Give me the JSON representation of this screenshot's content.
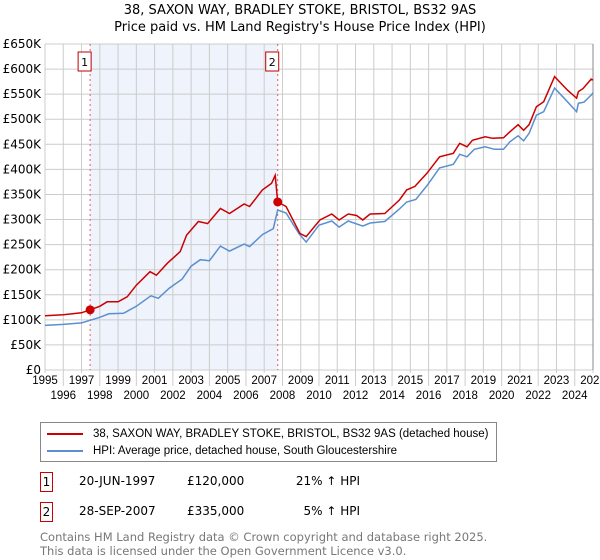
{
  "title_line1": "38, SAXON WAY, BRADLEY STOKE, BRISTOL, BS32 9AS",
  "title_line2": "Price paid vs. HM Land Registry's House Price Index (HPI)",
  "chart_data": {
    "type": "line",
    "title": "38, SAXON WAY, BRADLEY STOKE, BRISTOL, BS32 9AS - Price paid vs. HM Land Registry's House Price Index (HPI)",
    "xlim": [
      1995,
      2025
    ],
    "ylim": [
      0,
      650000
    ],
    "yticks": [
      0,
      50000,
      100000,
      150000,
      200000,
      250000,
      300000,
      350000,
      400000,
      450000,
      500000,
      550000,
      600000,
      650000
    ],
    "ytick_labels": [
      "£0",
      "£50K",
      "£100K",
      "£150K",
      "£200K",
      "£250K",
      "£300K",
      "£350K",
      "£400K",
      "£450K",
      "£500K",
      "£550K",
      "£600K",
      "£650K"
    ],
    "xticks": [
      1995,
      1996,
      1997,
      1998,
      1999,
      2000,
      2001,
      2002,
      2003,
      2004,
      2005,
      2006,
      2007,
      2008,
      2009,
      2010,
      2011,
      2012,
      2013,
      2014,
      2015,
      2016,
      2017,
      2018,
      2019,
      2020,
      2021,
      2022,
      2023,
      2024,
      2025
    ],
    "grid": true,
    "shaded_range": [
      1997.47,
      2007.74
    ],
    "series": [
      {
        "name": "38, SAXON WAY, BRADLEY STOKE, BRISTOL, BS32 9AS (detached house)",
        "color": "#cc0000",
        "x": [
          1995,
          1996,
          1997,
          1997.47,
          1998,
          1998.4,
          1999,
          1999.5,
          2000,
          2000.75,
          2001.1,
          2001.7,
          2002.4,
          2002.75,
          2003.4,
          2003.9,
          2004.6,
          2005.1,
          2005.9,
          2006.2,
          2006.9,
          2007.4,
          2007.6,
          2007.74,
          2008.2,
          2008.96,
          2009.3,
          2010.05,
          2010.7,
          2011.1,
          2011.6,
          2012.06,
          2012.4,
          2012.8,
          2013.6,
          2014.4,
          2014.8,
          2015.25,
          2015.9,
          2016.6,
          2017.35,
          2017.7,
          2018.1,
          2018.4,
          2019.1,
          2019.5,
          2020.1,
          2020.45,
          2020.9,
          2021.2,
          2021.5,
          2021.9,
          2022.3,
          2022.9,
          2023.6,
          2024.1,
          2024.2,
          2024.45,
          2024.9,
          2025
        ],
        "y": [
          108000,
          110000,
          114000,
          120000,
          127000,
          136000,
          136000,
          146000,
          169000,
          196000,
          189000,
          213000,
          236000,
          269000,
          296000,
          292000,
          322000,
          312000,
          331000,
          326000,
          359000,
          372000,
          388000,
          335000,
          326000,
          272000,
          266000,
          299000,
          311000,
          299000,
          311000,
          308000,
          299000,
          311000,
          312000,
          339000,
          359000,
          366000,
          392000,
          425000,
          432000,
          452000,
          445000,
          458000,
          465000,
          462000,
          463000,
          475000,
          489000,
          478000,
          489000,
          525000,
          535000,
          585000,
          558000,
          542000,
          555000,
          561000,
          580000,
          578000
        ]
      },
      {
        "name": "HPI: Average price, detached house, South Gloucestershire",
        "color": "#5b8fd0",
        "x": [
          1995,
          1996,
          1997,
          1997.47,
          1998,
          1998.5,
          1999.3,
          2000,
          2000.8,
          2001.2,
          2001.8,
          2002.5,
          2003,
          2003.5,
          2004,
          2004.6,
          2005.1,
          2005.9,
          2006.2,
          2006.9,
          2007.5,
          2007.74,
          2008.2,
          2008.9,
          2009.3,
          2010,
          2010.7,
          2011.1,
          2011.6,
          2012.4,
          2012.8,
          2013.6,
          2014.4,
          2014.8,
          2015.3,
          2015.9,
          2016.6,
          2017.35,
          2017.7,
          2018.1,
          2018.5,
          2019.1,
          2019.6,
          2020.1,
          2020.45,
          2020.9,
          2021.2,
          2021.5,
          2021.9,
          2022.3,
          2022.9,
          2023.6,
          2024.1,
          2024.2,
          2024.5,
          2024.95,
          2025
        ],
        "y": [
          89000,
          91000,
          94000,
          99000,
          105000,
          112000,
          113000,
          127000,
          148000,
          143000,
          163000,
          181000,
          207000,
          220000,
          218000,
          247000,
          237000,
          251000,
          246000,
          270000,
          282000,
          319000,
          313000,
          272000,
          255000,
          289000,
          297000,
          285000,
          297000,
          287000,
          293000,
          296000,
          321000,
          335000,
          340000,
          367000,
          403000,
          410000,
          430000,
          425000,
          440000,
          445000,
          440000,
          440000,
          455000,
          467000,
          457000,
          472000,
          508000,
          515000,
          562000,
          535000,
          515000,
          532000,
          534000,
          550000,
          553000
        ]
      }
    ],
    "sales": [
      {
        "label": "1",
        "date": "20-JUN-1997",
        "x": 1997.47,
        "price": 120000,
        "price_text": "£120,000",
        "hpi_text": "21% ↑ HPI"
      },
      {
        "label": "2",
        "date": "28-SEP-2007",
        "x": 2007.74,
        "price": 335000,
        "price_text": "£335,000",
        "hpi_text": "5% ↑ HPI"
      }
    ]
  },
  "legend": {
    "property": "38, SAXON WAY, BRADLEY STOKE, BRISTOL, BS32 9AS (detached house)",
    "hpi": "HPI: Average price, detached house, South Gloucestershire"
  },
  "footer": {
    "line1": "Contains HM Land Registry data © Crown copyright and database right 2025.",
    "line2": "This data is licensed under the Open Government Licence v3.0."
  }
}
